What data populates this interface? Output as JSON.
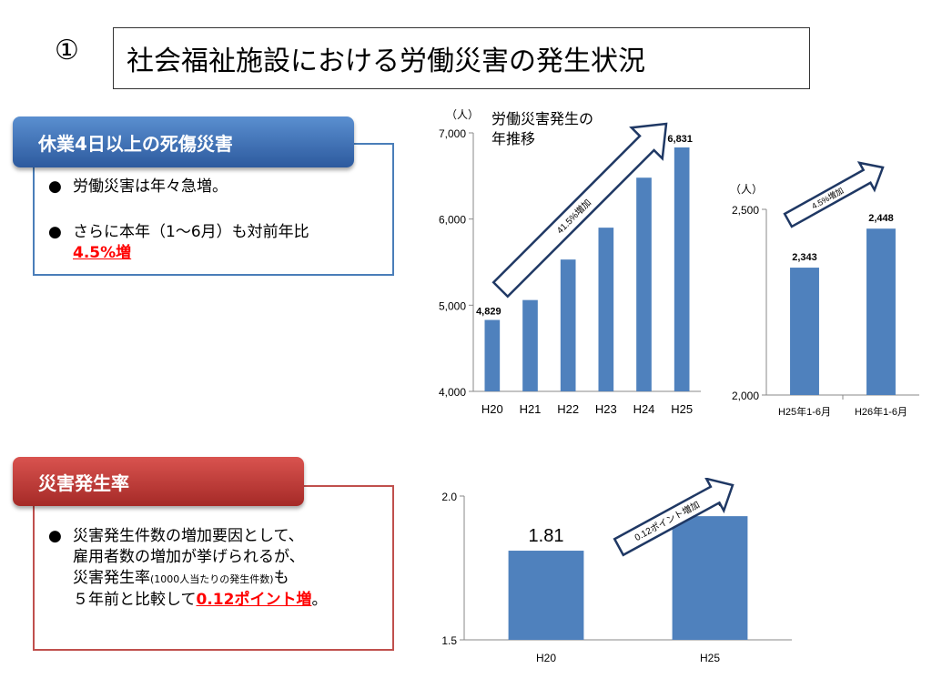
{
  "slide": {
    "number": "①",
    "title": "社会福祉施設における労働災害の発生状況"
  },
  "panel1": {
    "header": "休業4日以上の死傷災害",
    "bullet_dot": "●",
    "bullet1": "労働災害は年々急増。",
    "bullet2_line1": "さらに本年（1～6月）も対前年比",
    "bullet2_highlight": "4.5%増"
  },
  "panel2": {
    "header": "災害発生率",
    "bullet_dot": "●",
    "line1": "災害発生件数の増加要因として、",
    "line2": "雇用者数の増加が挙げられるが、",
    "line3_a": "災害発生率",
    "line3_small": "(1000人当たりの発生件数)",
    "line3_b": "も",
    "line4_a": "５年前と比較して",
    "line4_highlight": "0.12ポイント増",
    "line4_b": "。"
  },
  "chart_data": [
    {
      "type": "bar",
      "unit_label": "（人）",
      "title": "労働災害発生の\n年推移",
      "title_lines": [
        "労働災害発生の",
        "年推移"
      ],
      "categories": [
        "H20",
        "H21",
        "H22",
        "H23",
        "H24",
        "H25"
      ],
      "values": [
        4829,
        5060,
        5530,
        5900,
        6480,
        6831
      ],
      "data_labels": [
        "4,829",
        "",
        "",
        "",
        "",
        "6,831"
      ],
      "yticks": [
        "4,000",
        "5,000",
        "6,000",
        "7,000"
      ],
      "ylim": [
        4000,
        7000
      ],
      "arrow_label": "41.5%増加",
      "color": "#4f81bd"
    },
    {
      "type": "bar",
      "unit_label": "（人）",
      "categories": [
        "H25年1-6月",
        "H26年1-6月"
      ],
      "values": [
        2343,
        2448
      ],
      "data_labels": [
        "2,343",
        "2,448"
      ],
      "yticks": [
        "2,000",
        "2,500"
      ],
      "ylim": [
        2000,
        2500
      ],
      "arrow_label": "4.5%増加",
      "color": "#4f81bd"
    },
    {
      "type": "bar",
      "categories": [
        "H20",
        "H25"
      ],
      "values": [
        1.81,
        1.93
      ],
      "data_labels": [
        "1.81",
        "1.93"
      ],
      "yticks": [
        "1.5",
        "2.0"
      ],
      "ylim": [
        1.5,
        2.0
      ],
      "arrow_label": "0.12ポイント増加",
      "color": "#4f81bd"
    }
  ]
}
